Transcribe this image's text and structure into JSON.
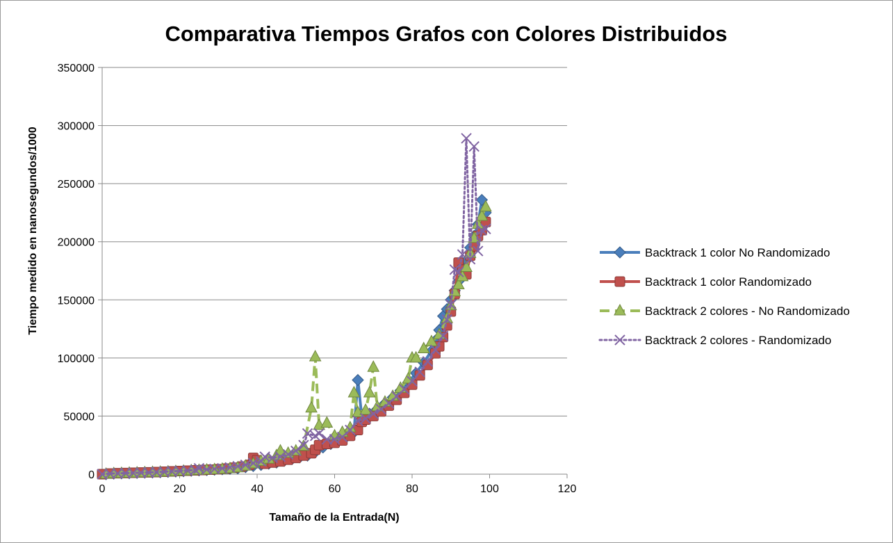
{
  "chart_data": {
    "type": "line",
    "title": "Comparativa Tiempos Grafos con Colores Distribuidos",
    "xlabel": "Tamaño de la Entrada(N)",
    "ylabel": "Tiempo medido en nanosegundos/1000",
    "xlim": [
      0,
      120
    ],
    "ylim": [
      0,
      350000
    ],
    "xticks": [
      0,
      20,
      40,
      60,
      80,
      100,
      120
    ],
    "yticks": [
      0,
      50000,
      100000,
      150000,
      200000,
      250000,
      300000,
      350000
    ],
    "grid": "horizontal",
    "legend_position": "right",
    "series": [
      {
        "name": "Backtrack 1 color No Randomizado",
        "color": "#4a7ebb",
        "marker": "diamond",
        "line": "solid",
        "points": [
          [
            1,
            0
          ],
          [
            3,
            500
          ],
          [
            5,
            700
          ],
          [
            7,
            900
          ],
          [
            9,
            1100
          ],
          [
            11,
            1300
          ],
          [
            13,
            1500
          ],
          [
            15,
            1700
          ],
          [
            17,
            2000
          ],
          [
            19,
            2300
          ],
          [
            21,
            2600
          ],
          [
            23,
            3000
          ],
          [
            25,
            3300
          ],
          [
            27,
            3600
          ],
          [
            29,
            3900
          ],
          [
            31,
            4200
          ],
          [
            33,
            4600
          ],
          [
            35,
            5000
          ],
          [
            37,
            6000
          ],
          [
            39,
            7000
          ],
          [
            41,
            8000
          ],
          [
            43,
            9000
          ],
          [
            45,
            10000
          ],
          [
            47,
            11500
          ],
          [
            49,
            13000
          ],
          [
            51,
            14500
          ],
          [
            53,
            16000
          ],
          [
            55,
            19000
          ],
          [
            57,
            23000
          ],
          [
            59,
            26000
          ],
          [
            61,
            29000
          ],
          [
            63,
            32000
          ],
          [
            65,
            36000
          ],
          [
            66,
            81000
          ],
          [
            67,
            50000
          ],
          [
            69,
            52000
          ],
          [
            71,
            56000
          ],
          [
            73,
            61000
          ],
          [
            75,
            66000
          ],
          [
            77,
            72000
          ],
          [
            79,
            79000
          ],
          [
            81,
            87000
          ],
          [
            83,
            96000
          ],
          [
            85,
            106000
          ],
          [
            86,
            115000
          ],
          [
            87,
            124000
          ],
          [
            88,
            136000
          ],
          [
            89,
            142000
          ],
          [
            90,
            150000
          ],
          [
            91,
            158000
          ],
          [
            92,
            166000
          ],
          [
            93,
            175000
          ],
          [
            94,
            184000
          ],
          [
            95,
            195000
          ],
          [
            96,
            205000
          ],
          [
            97,
            215000
          ],
          [
            98,
            236000
          ],
          [
            99,
            225000
          ]
        ]
      },
      {
        "name": "Backtrack 1 color Randomizado",
        "color": "#c0504d",
        "marker": "square",
        "line": "solid",
        "points": [
          [
            0,
            0
          ],
          [
            2,
            500
          ],
          [
            4,
            800
          ],
          [
            6,
            1000
          ],
          [
            8,
            1200
          ],
          [
            10,
            1400
          ],
          [
            12,
            1600
          ],
          [
            14,
            1800
          ],
          [
            16,
            2100
          ],
          [
            18,
            2400
          ],
          [
            20,
            2700
          ],
          [
            22,
            3000
          ],
          [
            24,
            3300
          ],
          [
            26,
            3600
          ],
          [
            28,
            3900
          ],
          [
            30,
            4300
          ],
          [
            32,
            4800
          ],
          [
            34,
            5500
          ],
          [
            36,
            6500
          ],
          [
            38,
            8000
          ],
          [
            39,
            14000
          ],
          [
            40,
            12000
          ],
          [
            42,
            9000
          ],
          [
            44,
            10000
          ],
          [
            46,
            11000
          ],
          [
            48,
            12500
          ],
          [
            50,
            14000
          ],
          [
            52,
            16000
          ],
          [
            54,
            18000
          ],
          [
            55,
            21000
          ],
          [
            56,
            25000
          ],
          [
            58,
            26000
          ],
          [
            60,
            27000
          ],
          [
            62,
            29000
          ],
          [
            64,
            33000
          ],
          [
            66,
            38000
          ],
          [
            67,
            45000
          ],
          [
            68,
            47000
          ],
          [
            70,
            50000
          ],
          [
            72,
            54000
          ],
          [
            74,
            59000
          ],
          [
            76,
            64000
          ],
          [
            78,
            70000
          ],
          [
            80,
            77000
          ],
          [
            82,
            85000
          ],
          [
            84,
            94000
          ],
          [
            86,
            104000
          ],
          [
            87,
            110000
          ],
          [
            88,
            118000
          ],
          [
            89,
            128000
          ],
          [
            90,
            140000
          ],
          [
            91,
            155000
          ],
          [
            92,
            182000
          ],
          [
            93,
            176000
          ],
          [
            94,
            172000
          ],
          [
            95,
            188000
          ],
          [
            96,
            196000
          ],
          [
            97,
            205000
          ],
          [
            98,
            210000
          ],
          [
            99,
            217000
          ]
        ]
      },
      {
        "name": "Backtrack 2  colores - No Randomizado",
        "color": "#9bbb59",
        "marker": "triangle",
        "line": "dashed",
        "points": [
          [
            1,
            0
          ],
          [
            3,
            500
          ],
          [
            5,
            700
          ],
          [
            7,
            900
          ],
          [
            9,
            1100
          ],
          [
            11,
            1300
          ],
          [
            13,
            1500
          ],
          [
            15,
            1700
          ],
          [
            17,
            2000
          ],
          [
            19,
            2300
          ],
          [
            21,
            2600
          ],
          [
            23,
            3000
          ],
          [
            25,
            3300
          ],
          [
            27,
            3600
          ],
          [
            29,
            3900
          ],
          [
            31,
            4300
          ],
          [
            33,
            4800
          ],
          [
            35,
            5500
          ],
          [
            37,
            7000
          ],
          [
            39,
            9000
          ],
          [
            41,
            11000
          ],
          [
            43,
            13000
          ],
          [
            45,
            16000
          ],
          [
            46,
            20000
          ],
          [
            48,
            18000
          ],
          [
            50,
            20000
          ],
          [
            52,
            24000
          ],
          [
            54,
            57000
          ],
          [
            55,
            101000
          ],
          [
            56,
            42000
          ],
          [
            58,
            44000
          ],
          [
            60,
            33000
          ],
          [
            62,
            36000
          ],
          [
            64,
            40000
          ],
          [
            65,
            70000
          ],
          [
            66,
            53000
          ],
          [
            68,
            55000
          ],
          [
            69,
            70000
          ],
          [
            70,
            92000
          ],
          [
            71,
            58000
          ],
          [
            73,
            62000
          ],
          [
            75,
            67000
          ],
          [
            77,
            74000
          ],
          [
            79,
            82000
          ],
          [
            80,
            100000
          ],
          [
            81,
            100000
          ],
          [
            83,
            108000
          ],
          [
            85,
            114000
          ],
          [
            87,
            120000
          ],
          [
            89,
            134000
          ],
          [
            90,
            145000
          ],
          [
            91,
            157000
          ],
          [
            92,
            163000
          ],
          [
            93,
            170000
          ],
          [
            94,
            178000
          ],
          [
            95,
            190000
          ],
          [
            96,
            203000
          ],
          [
            97,
            215000
          ],
          [
            98,
            222000
          ],
          [
            99,
            230000
          ]
        ]
      },
      {
        "name": "Backtrack 2  colores - Randomizado",
        "color": "#8064a2",
        "marker": "x",
        "line": "dotted",
        "points": [
          [
            0,
            0
          ],
          [
            2,
            500
          ],
          [
            4,
            700
          ],
          [
            6,
            900
          ],
          [
            8,
            1100
          ],
          [
            10,
            1300
          ],
          [
            12,
            1500
          ],
          [
            14,
            1800
          ],
          [
            16,
            2100
          ],
          [
            18,
            2400
          ],
          [
            20,
            2800
          ],
          [
            22,
            3200
          ],
          [
            24,
            3600
          ],
          [
            25,
            5000
          ],
          [
            27,
            4000
          ],
          [
            29,
            4500
          ],
          [
            31,
            5000
          ],
          [
            33,
            5800
          ],
          [
            35,
            6800
          ],
          [
            37,
            8000
          ],
          [
            39,
            9500
          ],
          [
            41,
            11000
          ],
          [
            42,
            15000
          ],
          [
            44,
            14000
          ],
          [
            46,
            15000
          ],
          [
            48,
            17000
          ],
          [
            50,
            20000
          ],
          [
            52,
            25000
          ],
          [
            53,
            35000
          ],
          [
            55,
            33000
          ],
          [
            56,
            35000
          ],
          [
            58,
            30000
          ],
          [
            60,
            30000
          ],
          [
            62,
            32000
          ],
          [
            64,
            38000
          ],
          [
            66,
            46000
          ],
          [
            68,
            48000
          ],
          [
            70,
            52000
          ],
          [
            72,
            56000
          ],
          [
            74,
            61000
          ],
          [
            76,
            67000
          ],
          [
            78,
            73000
          ],
          [
            80,
            80000
          ],
          [
            82,
            88000
          ],
          [
            84,
            97000
          ],
          [
            86,
            107000
          ],
          [
            88,
            119000
          ],
          [
            89,
            133000
          ],
          [
            90,
            146000
          ],
          [
            91,
            176000
          ],
          [
            92,
            174000
          ],
          [
            93,
            189000
          ],
          [
            94,
            289000
          ],
          [
            95,
            185000
          ],
          [
            96,
            282000
          ],
          [
            97,
            192000
          ],
          [
            98,
            210000
          ],
          [
            99,
            211000
          ]
        ]
      }
    ]
  }
}
